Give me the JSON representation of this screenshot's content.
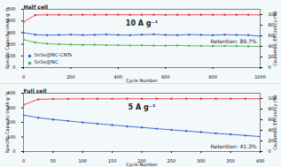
{
  "chart_data": [
    {
      "type": "line",
      "title": "Half cell",
      "subtitle": "10 A g⁻¹",
      "annotations": [
        "Retention: 89.7%"
      ],
      "x_label": "Cycle Number",
      "y_label": "Specific Capacity (mAh g⁻¹)",
      "y2_label": "Coulombic Efficiency (%)",
      "x": [
        0,
        50,
        100,
        150,
        200,
        250,
        300,
        350,
        400,
        450,
        500,
        550,
        600,
        650,
        700,
        750,
        800,
        850,
        900,
        950,
        1000
      ],
      "xlim": [
        0,
        1000
      ],
      "xticks": [
        0,
        200,
        400,
        600,
        800,
        1000
      ],
      "ylim": [
        0,
        500
      ],
      "yticks": [
        0,
        100,
        200,
        300,
        400,
        500
      ],
      "y2lim": [
        0,
        110
      ],
      "y2ticks": [
        0,
        20,
        40,
        60,
        80,
        100
      ],
      "grid": false,
      "legend": "lower left",
      "series": [
        {
          "name": "SnSe@NC-CNTs",
          "color": "#3a5fcd",
          "marker": "circle",
          "values": [
            300,
            282,
            278,
            280,
            283,
            279,
            281,
            284,
            280,
            278,
            282,
            285,
            280,
            279,
            283,
            281,
            278,
            282,
            280,
            279,
            269
          ]
        },
        {
          "name": "SnSe@NC",
          "color": "#4caf50",
          "marker": "square",
          "values": [
            240,
            215,
            205,
            200,
            198,
            195,
            196,
            193,
            192,
            190,
            191,
            189,
            188,
            190,
            187,
            186,
            185,
            186,
            184,
            183,
            182
          ]
        },
        {
          "color": "#e53935",
          "axis": "y2",
          "marker": "circle",
          "values": [
            86,
            99.2,
            99.5,
            99.6,
            99.4,
            99.7,
            99.5,
            99.6,
            99.8,
            99.5,
            99.6,
            99.7,
            99.4,
            99.6,
            99.5,
            99.7,
            99.6,
            99.5,
            99.7,
            99.6,
            99.5
          ]
        }
      ]
    },
    {
      "type": "line",
      "title": "Full cell",
      "subtitle": "5 A g⁻¹",
      "annotations": [
        "Retention: 41.3%"
      ],
      "x_label": "Cycle Number",
      "y_label": "Specific Capacity (mAh g⁻¹)",
      "y2_label": "Coulombic Efficiency (%)",
      "x": [
        0,
        25,
        50,
        75,
        100,
        125,
        150,
        175,
        200,
        225,
        250,
        275,
        300,
        325,
        350,
        375,
        400
      ],
      "xlim": [
        0,
        400
      ],
      "xticks": [
        0,
        50,
        100,
        150,
        200,
        250,
        300,
        350,
        400
      ],
      "ylim": [
        0,
        400
      ],
      "yticks": [
        0,
        100,
        200,
        300,
        400
      ],
      "y2lim": [
        0,
        110
      ],
      "y2ticks": [
        0,
        20,
        40,
        60,
        80,
        100
      ],
      "grid": false,
      "series": [
        {
          "color": "#3a5fcd",
          "marker": "circle",
          "values": [
            250,
            232,
            220,
            210,
            200,
            191,
            182,
            173,
            165,
            157,
            149,
            141,
            133,
            125,
            118,
            110,
            103
          ]
        },
        {
          "color": "#e53935",
          "axis": "y2",
          "marker": "circle",
          "values": [
            88,
            98.5,
            99.1,
            99.3,
            99.4,
            99.5,
            99.4,
            99.6,
            99.5,
            99.6,
            99.5,
            99.6,
            99.7,
            99.5,
            99.6,
            99.6,
            99.5
          ]
        }
      ]
    }
  ]
}
